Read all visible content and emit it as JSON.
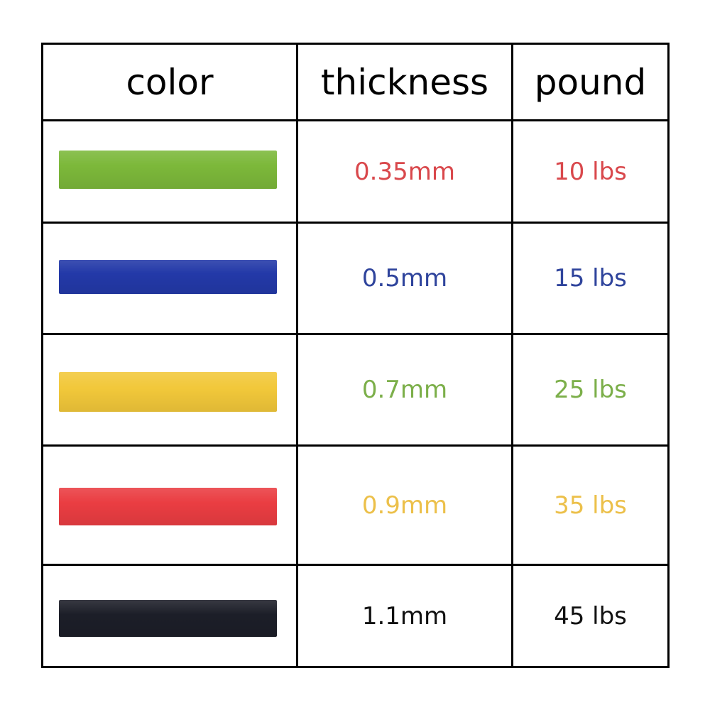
{
  "headers": {
    "color": "color",
    "thickness": "thickness",
    "pound": "pound"
  },
  "rows": [
    {
      "band_color": "#7cb83a",
      "thickness": "0.35mm",
      "pound": "10 lbs",
      "text_color": "#d9484c"
    },
    {
      "band_color": "#2339a8",
      "thickness": "0.5mm",
      "pound": "15 lbs",
      "text_color": "#2f449c"
    },
    {
      "band_color": "#f2c83a",
      "thickness": "0.7mm",
      "pound": "25 lbs",
      "text_color": "#7caf4a"
    },
    {
      "band_color": "#ea3d42",
      "thickness": "0.9mm",
      "pound": "35 lbs",
      "text_color": "#ecc04a"
    },
    {
      "band_color": "#1c1e28",
      "thickness": "1.1mm",
      "pound": "45 lbs",
      "text_color": "#111111"
    }
  ]
}
